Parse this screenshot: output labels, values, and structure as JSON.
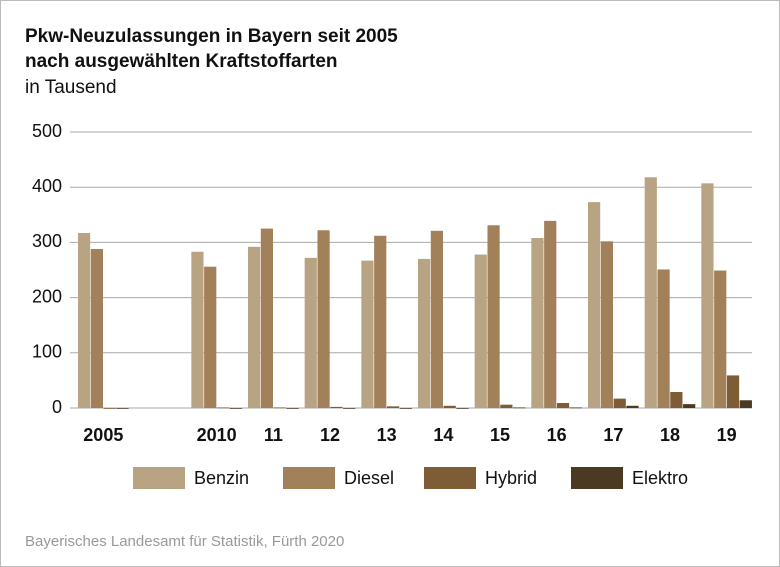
{
  "chart_data": {
    "type": "bar",
    "title": "Pkw-Neuzulassungen in Bayern seit 2005",
    "subtitle": "nach ausgewählten Kraftstoffarten",
    "unit_label": "in Tausend",
    "source": "Bayerisches Landesamt für Statistik, Fürth 2020",
    "categories": [
      "2005",
      null,
      "2010",
      "11",
      "12",
      "13",
      "14",
      "15",
      "16",
      "17",
      "18",
      "19"
    ],
    "series": [
      {
        "name": "Benzin",
        "color": "#b8a483",
        "values": [
          317,
          null,
          283,
          292,
          272,
          267,
          270,
          278,
          308,
          373,
          418,
          407
        ]
      },
      {
        "name": "Diesel",
        "color": "#a2815a",
        "values": [
          288,
          null,
          256,
          325,
          322,
          312,
          321,
          331,
          339,
          302,
          251,
          249
        ]
      },
      {
        "name": "Hybrid",
        "color": "#7d5c36",
        "values": [
          0,
          null,
          1,
          1,
          2,
          3,
          4,
          6,
          9,
          17,
          29,
          59
        ]
      },
      {
        "name": "Elektro",
        "color": "#4b3a22",
        "values": [
          0,
          null,
          0,
          0,
          0,
          0,
          0,
          1,
          1,
          4,
          7,
          14
        ]
      }
    ],
    "ylim": [
      0,
      500
    ],
    "yticks": [
      0,
      100,
      200,
      300,
      400,
      500
    ],
    "grid": true,
    "legend": "bottom"
  }
}
